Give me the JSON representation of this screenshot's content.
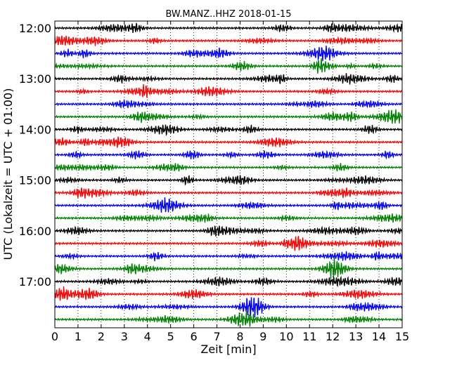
{
  "chart_data": {
    "type": "line",
    "title": "BW.MANZ..HHZ 2018-01-15",
    "xlabel": "Zeit  [min]",
    "ylabel": "UTC (Lokalzeit = UTC + 01:00)",
    "xlim": [
      0,
      15
    ],
    "x_ticks": [
      "0",
      "1",
      "2",
      "3",
      "4",
      "5",
      "6",
      "7",
      "8",
      "9",
      "10",
      "11",
      "12",
      "13",
      "14",
      "15"
    ],
    "y_ticks": [
      "12:00",
      "13:00",
      "14:00",
      "15:00",
      "16:00",
      "17:00"
    ],
    "grid": true,
    "colors": [
      "#000000",
      "#ff0000",
      "#0000ff",
      "#008000"
    ],
    "trace_count": 24,
    "trace_start": "12:00",
    "trace_minutes": 15
  }
}
